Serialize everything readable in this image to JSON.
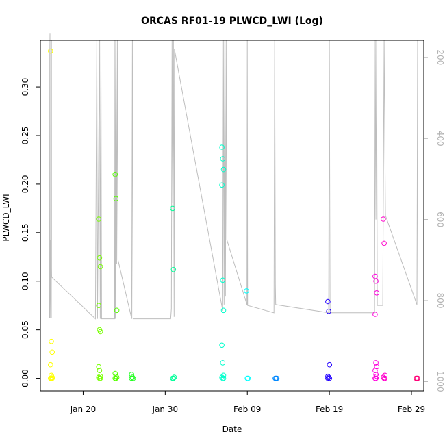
{
  "chart_data": {
    "type": "scatter",
    "title": "ORCAS RF01-19 PLWCD_LWI (Log)",
    "xlabel": "Date",
    "ylabel": "PLWCD_LWI",
    "x_ticks": [
      {
        "date": "2016-01-20",
        "label": "Jan 20"
      },
      {
        "date": "2016-01-30",
        "label": "Jan 30"
      },
      {
        "date": "2016-02-09",
        "label": "Feb 09"
      },
      {
        "date": "2016-02-19",
        "label": "Feb 19"
      },
      {
        "date": "2016-02-29",
        "label": "Feb 29"
      }
    ],
    "xlim": [
      "2016-01-14T19:00",
      "2016-03-01T12:00"
    ],
    "y_ticks": [
      0.0,
      0.05,
      0.1,
      0.15,
      0.2,
      0.25,
      0.3
    ],
    "y_tick_labels": [
      "0.00",
      "0.05",
      "0.10",
      "0.15",
      "0.20",
      "0.25",
      "0.30"
    ],
    "ylim": [
      -0.013,
      0.348
    ],
    "right_axis": {
      "ticks": [
        200,
        400,
        600,
        800,
        1000
      ],
      "tick_labels": [
        "200",
        "400",
        "600",
        "800",
        "1000"
      ],
      "lim": [
        1023,
        158
      ],
      "color": "#b3b3b3"
    },
    "grid": false,
    "legend": "none",
    "point_series": [
      {
        "date": "2016-01-16T03:00",
        "color": "#ffff00",
        "values": [
          0.337,
          0.038,
          0.027,
          0.014,
          0.003,
          0.001,
          0.0,
          0.0,
          0.0
        ]
      },
      {
        "date": "2016-01-22T00:00",
        "color": "#77ff00",
        "values": [
          0.164,
          0.124,
          0.115,
          0.075,
          0.05,
          0.048,
          0.012,
          0.008,
          0.002,
          0.001,
          0.0,
          0.0
        ]
      },
      {
        "date": "2016-01-24T00:00",
        "color": "#55ff00",
        "values": [
          0.21,
          0.185,
          0.07,
          0.005,
          0.002,
          0.001,
          0.0,
          0.0
        ]
      },
      {
        "date": "2016-01-26T00:00",
        "color": "#22ff22",
        "values": [
          0.004,
          0.001,
          0.0,
          0.0
        ]
      },
      {
        "date": "2016-01-31T00:00",
        "color": "#00ff99",
        "values": [
          0.175,
          0.112,
          0.001,
          0.0,
          0.0
        ]
      },
      {
        "date": "2016-02-06T00:00",
        "color": "#00ffcc",
        "values": [
          0.238,
          0.226,
          0.215,
          0.199,
          0.101,
          0.07,
          0.034,
          0.016,
          0.003,
          0.001,
          0.0,
          0.0
        ]
      },
      {
        "date": "2016-02-09T00:00",
        "color": "#00ffff",
        "values": [
          0.09,
          0.0,
          0.0
        ]
      },
      {
        "date": "2016-02-12T12:00",
        "color": "#0088ff",
        "values": [
          0.0,
          0.0,
          0.0
        ]
      },
      {
        "date": "2016-02-18T22:00",
        "color": "#2200ff",
        "values": [
          0.079,
          0.069,
          0.014,
          0.002,
          0.001,
          0.0,
          0.0
        ]
      },
      {
        "date": "2016-02-24T16:00",
        "color": "#ff00dd",
        "values": [
          0.105,
          0.1,
          0.088,
          0.066,
          0.016,
          0.012,
          0.008,
          0.004,
          0.002,
          0.0,
          0.0
        ]
      },
      {
        "date": "2016-02-25T16:00",
        "color": "#ff00cc",
        "values": [
          0.164,
          0.139,
          0.003,
          0.001,
          0.0,
          0.0
        ]
      },
      {
        "date": "2016-02-29T16:00",
        "color": "#ff0077",
        "values": [
          0.0,
          0.0,
          0.0
        ]
      }
    ],
    "altitude_trace": {
      "color": "#bebebe",
      "right_axis_units": true,
      "points": [
        [
          "2016-01-15T22:00",
          843
        ],
        [
          "2016-01-15T22:20",
          200
        ],
        [
          "2016-01-15T23:00",
          140
        ],
        [
          "2016-01-15T23:20",
          843
        ],
        [
          "2016-01-16T00:00",
          650
        ],
        [
          "2016-01-16T01:00",
          742
        ],
        [
          "2016-01-16T02:00",
          843
        ],
        [
          "2016-01-16T02:30",
          170
        ],
        [
          "2016-01-16T03:00",
          843
        ],
        [
          "2016-01-16T03:20",
          158
        ],
        [
          "2016-01-16T03:40",
          720
        ],
        [
          "2016-01-16T04:00",
          742
        ],
        [
          "2016-01-21T12:00",
          845
        ],
        [
          "2016-01-21T16:00",
          158
        ],
        [
          "2016-01-21T18:00",
          845
        ],
        [
          "2016-01-21T20:00",
          600
        ],
        [
          "2016-01-22T00:00",
          158
        ],
        [
          "2016-01-22T02:00",
          845
        ],
        [
          "2016-01-22T04:00",
          158
        ],
        [
          "2016-01-22T06:00",
          845
        ],
        [
          "2016-01-23T20:00",
          845
        ],
        [
          "2016-01-23T21:00",
          158
        ],
        [
          "2016-01-23T22:00",
          845
        ],
        [
          "2016-01-24T00:00",
          158
        ],
        [
          "2016-01-24T02:00",
          710
        ],
        [
          "2016-01-24T04:00",
          158
        ],
        [
          "2016-01-24T06:00",
          700
        ],
        [
          "2016-01-25T22:00",
          845
        ],
        [
          "2016-01-26T00:00",
          158
        ],
        [
          "2016-01-26T02:00",
          845
        ],
        [
          "2016-01-30T16:00",
          845
        ],
        [
          "2016-01-30T18:00",
          820
        ],
        [
          "2016-01-30T20:00",
          158
        ],
        [
          "2016-01-30T22:00",
          560
        ],
        [
          "2016-01-31T00:00",
          158
        ],
        [
          "2016-01-31T02:00",
          840
        ],
        [
          "2016-01-31T03:00",
          180
        ],
        [
          "2016-02-06T00:00",
          825
        ],
        [
          "2016-02-06T02:00",
          158
        ],
        [
          "2016-02-06T04:00",
          810
        ],
        [
          "2016-02-06T06:00",
          158
        ],
        [
          "2016-02-06T08:00",
          790
        ],
        [
          "2016-02-06T10:00",
          158
        ],
        [
          "2016-02-06T12:00",
          650
        ],
        [
          "2016-02-08T23:00",
          810
        ],
        [
          "2016-02-09T00:00",
          158
        ],
        [
          "2016-02-09T01:00",
          812
        ],
        [
          "2016-02-12T06:00",
          830
        ],
        [
          "2016-02-12T08:00",
          158
        ],
        [
          "2016-02-12T10:00",
          760
        ],
        [
          "2016-02-12T11:00",
          810
        ],
        [
          "2016-02-18T22:00",
          830
        ],
        [
          "2016-02-19T00:00",
          158
        ],
        [
          "2016-02-19T02:00",
          830
        ],
        [
          "2016-02-24T12:00",
          830
        ],
        [
          "2016-02-24T14:00",
          158
        ],
        [
          "2016-02-24T16:00",
          600
        ],
        [
          "2016-02-24T18:00",
          158
        ],
        [
          "2016-02-24T20:00",
          812
        ],
        [
          "2016-02-25T12:00",
          812
        ],
        [
          "2016-02-25T16:00",
          158
        ],
        [
          "2016-02-25T20:00",
          590
        ],
        [
          "2016-02-29T16:00",
          810
        ],
        [
          "2016-02-29T18:00",
          158
        ],
        [
          "2016-02-29T19:00",
          810
        ]
      ]
    }
  }
}
